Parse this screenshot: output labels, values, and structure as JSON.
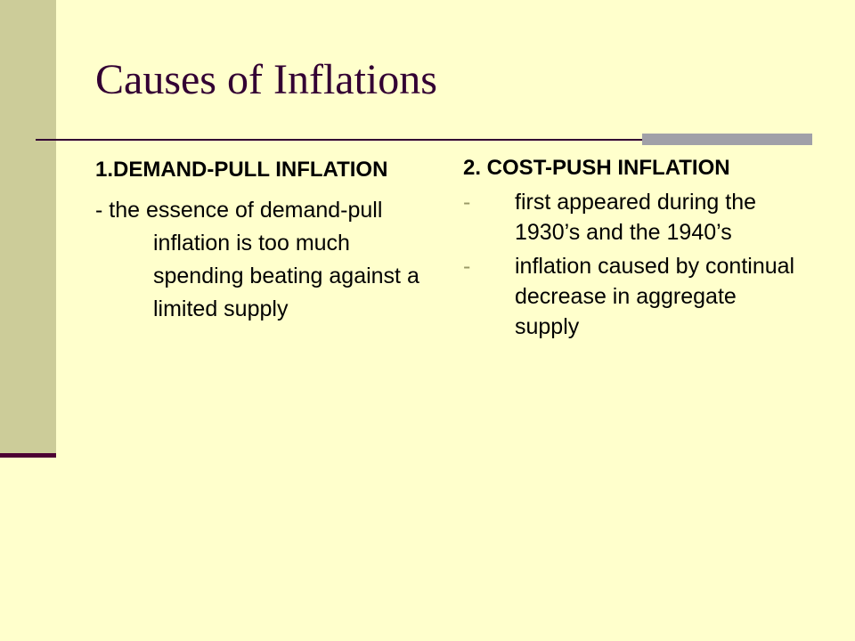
{
  "slide": {
    "title": "Causes of Inflations",
    "columns": [
      {
        "heading": "1.DEMAND-PULL INFLATION",
        "items": [
          "- the essence of demand-pull inflation is too much spending beating against a limited supply"
        ]
      },
      {
        "heading": "2. COST-PUSH INFLATION",
        "items": [
          "first appeared during the 1930’s and the 1940’s",
          "inflation caused by continual decrease in aggregate supply"
        ]
      }
    ]
  }
}
